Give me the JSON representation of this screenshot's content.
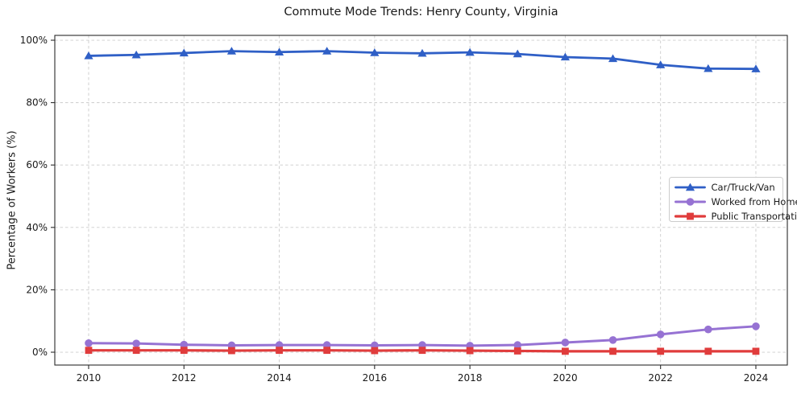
{
  "figure": {
    "title": "Commute Mode Trends: Henry County, Virginia",
    "ylabel": "Percentage of Workers (%)"
  },
  "chart_data": {
    "type": "line",
    "title": "Commute Mode Trends: Henry County, Virginia",
    "xlabel": "",
    "ylabel": "Percentage of Workers (%)",
    "x": [
      2010,
      2011,
      2012,
      2013,
      2014,
      2015,
      2016,
      2017,
      2018,
      2019,
      2020,
      2021,
      2022,
      2023,
      2024
    ],
    "series": [
      {
        "name": "Car/Truck/Van",
        "color": "#2f5fc6",
        "marker": "triangle",
        "line_width": 2.8,
        "values": [
          95.0,
          95.3,
          95.9,
          96.5,
          96.2,
          96.5,
          96.0,
          95.8,
          96.1,
          95.6,
          94.6,
          94.1,
          92.1,
          90.9,
          90.8
        ]
      },
      {
        "name": "Worked from Home",
        "color": "#9672d3",
        "marker": "circle",
        "line_width": 3.0,
        "values": [
          2.9,
          2.8,
          2.4,
          2.2,
          2.3,
          2.3,
          2.2,
          2.3,
          2.1,
          2.3,
          3.1,
          3.9,
          5.7,
          7.3,
          8.3
        ]
      },
      {
        "name": "Public Transportation",
        "color": "#e03c3c",
        "marker": "square",
        "line_width": 3.2,
        "values": [
          0.6,
          0.6,
          0.6,
          0.5,
          0.6,
          0.6,
          0.5,
          0.6,
          0.5,
          0.4,
          0.3,
          0.3,
          0.3,
          0.3,
          0.3
        ]
      }
    ],
    "x_ticks": [
      2010,
      2012,
      2014,
      2016,
      2018,
      2020,
      2022,
      2024
    ],
    "y_ticks": [
      0,
      20,
      40,
      60,
      80,
      100
    ],
    "y_tick_suffix": "%",
    "xlim": [
      2009.29,
      2024.66
    ],
    "ylim": [
      -4.12,
      101.55
    ],
    "grid": true,
    "legend_position": "center-right"
  },
  "legend": {
    "entries": [
      "Car/Truck/Van",
      "Worked from Home",
      "Public Transportation"
    ]
  },
  "colors": {
    "grid": "#cccccc",
    "spine": "#2b2b2b",
    "tick_label": "#1a1a1a",
    "legend_border": "#cccccc",
    "background": "#ffffff"
  }
}
